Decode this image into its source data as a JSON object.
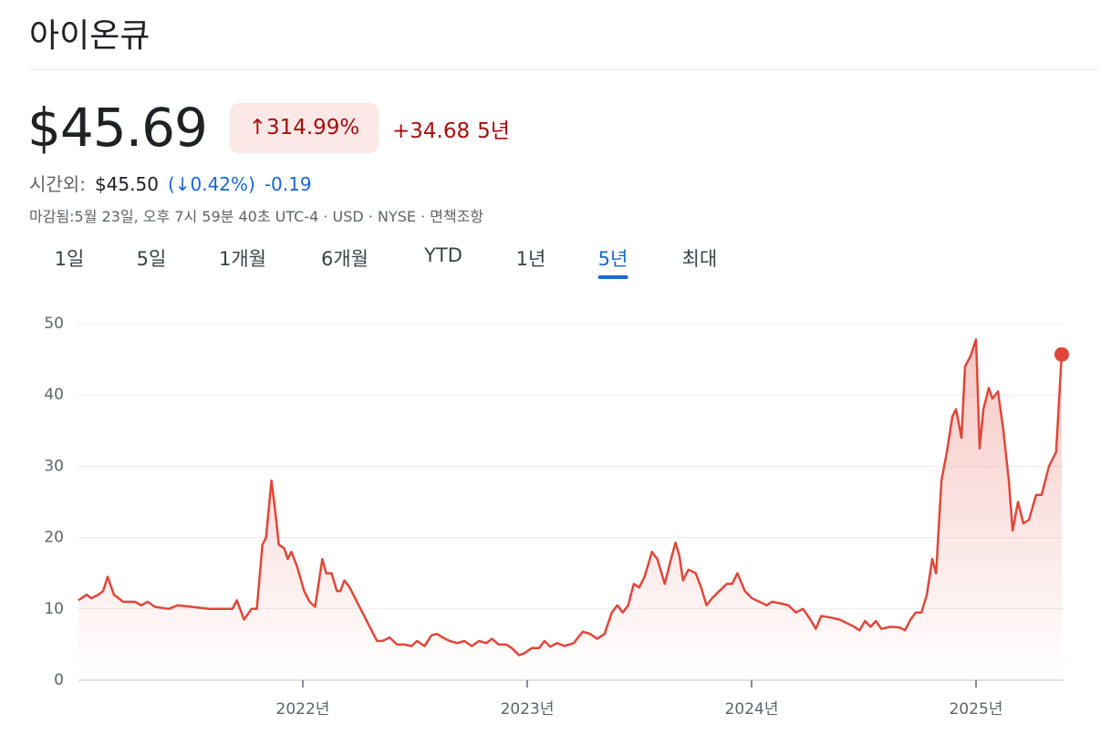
{
  "header": {
    "title": "아이온큐"
  },
  "quote": {
    "price": "$45.69",
    "change_pct": "↑314.99%",
    "change_abs": "+34.68",
    "period": "5년",
    "after_hours_label": "시간외:",
    "after_hours_price": "$45.50",
    "after_hours_change_pct": "(↓0.42%)",
    "after_hours_change": "-0.19",
    "meta": "마감됨:5월 23일, 오후 7시 59분 40초 UTC-4 · USD · NYSE · 면책조항"
  },
  "tabs": {
    "items": [
      "1일",
      "5일",
      "1개월",
      "6개월",
      "YTD",
      "1년",
      "5년",
      "최대"
    ],
    "selected": 6
  },
  "chart_data": {
    "type": "line",
    "color": "#e0463a",
    "x": [
      2021.0,
      2021.037,
      2021.057,
      2021.089,
      2021.11,
      2021.13,
      2021.158,
      2021.199,
      2021.252,
      2021.28,
      2021.308,
      2021.341,
      2021.402,
      2021.442,
      2021.503,
      2021.584,
      2021.686,
      2021.706,
      2021.738,
      2021.771,
      2021.795,
      2021.82,
      2021.836,
      2021.86,
      2021.876,
      2021.893,
      2021.917,
      2021.933,
      2021.949,
      2021.974,
      2022.006,
      2022.03,
      2022.055,
      2022.087,
      2022.104,
      2022.128,
      2022.152,
      2022.168,
      2022.185,
      2022.209,
      2022.241,
      2022.274,
      2022.306,
      2022.331,
      2022.355,
      2022.387,
      2022.42,
      2022.452,
      2022.485,
      2022.509,
      2022.542,
      2022.574,
      2022.598,
      2022.623,
      2022.655,
      2022.688,
      2022.72,
      2022.753,
      2022.785,
      2022.818,
      2022.842,
      2022.874,
      2022.907,
      2022.931,
      2022.964,
      2022.988,
      2023.02,
      2023.053,
      2023.077,
      2023.102,
      2023.134,
      2023.166,
      2023.207,
      2023.248,
      2023.28,
      2023.312,
      2023.345,
      2023.377,
      2023.402,
      2023.426,
      2023.45,
      2023.475,
      2023.499,
      2023.523,
      2023.556,
      2023.58,
      2023.613,
      2023.637,
      2023.661,
      2023.678,
      2023.694,
      2023.718,
      2023.751,
      2023.775,
      2023.799,
      2023.824,
      2023.856,
      2023.889,
      2023.913,
      2023.937,
      2023.97,
      2024.002,
      2024.035,
      2024.067,
      2024.091,
      2024.124,
      2024.164,
      2024.197,
      2024.229,
      2024.262,
      2024.286,
      2024.31,
      2024.351,
      2024.392,
      2024.424,
      2024.457,
      2024.481,
      2024.505,
      2024.53,
      2024.554,
      2024.578,
      2024.619,
      2024.659,
      2024.684,
      2024.708,
      2024.732,
      2024.757,
      2024.781,
      2024.805,
      2024.822,
      2024.846,
      2024.87,
      2024.895,
      2024.911,
      2024.935,
      2024.951,
      2024.976,
      2025.0,
      2025.016,
      2025.033,
      2025.057,
      2025.073,
      2025.098,
      2025.122,
      2025.146,
      2025.163,
      2025.187,
      2025.211,
      2025.236,
      2025.268,
      2025.293,
      2025.325,
      2025.357,
      2025.382
    ],
    "values": [
      11.2,
      12,
      11.5,
      12,
      12.5,
      14.5,
      12,
      11,
      11,
      10.5,
      11,
      10.3,
      10,
      10.5,
      10.3,
      10,
      10,
      11.2,
      8.5,
      10,
      10,
      19,
      20,
      28,
      24,
      19,
      18.5,
      17,
      18,
      16,
      12.5,
      11,
      10.3,
      17,
      15,
      15,
      12.5,
      12.5,
      14,
      13,
      11,
      9,
      7,
      5.5,
      5.5,
      6,
      5,
      5,
      4.8,
      5.5,
      4.8,
      6.3,
      6.5,
      6,
      5.5,
      5.2,
      5.5,
      4.8,
      5.5,
      5.2,
      5.8,
      5,
      5,
      4.5,
      3.5,
      3.8,
      4.5,
      4.5,
      5.5,
      4.7,
      5.2,
      4.8,
      5.2,
      6.8,
      6.5,
      5.8,
      6.5,
      9.5,
      10.5,
      9.5,
      10.5,
      13.5,
      13,
      14.5,
      18,
      17,
      13.5,
      16.5,
      19.3,
      17.5,
      14,
      15.5,
      15,
      13,
      10.5,
      11.5,
      12.5,
      13.5,
      13.5,
      15,
      12.5,
      11.5,
      11,
      10.5,
      11,
      10.8,
      10.5,
      9.5,
      10,
      8.5,
      7.2,
      9,
      8.8,
      8.5,
      8,
      7.5,
      7,
      8.3,
      7.5,
      8.3,
      7.2,
      7.5,
      7.4,
      7,
      8.5,
      9.5,
      9.5,
      12,
      17,
      15,
      28,
      32,
      37,
      38,
      34,
      44,
      45.5,
      47.8,
      32.5,
      38,
      41,
      39.5,
      40.5,
      35,
      28,
      21,
      25,
      22,
      22.5,
      26,
      26,
      30,
      32,
      45.69
    ],
    "xlim": [
      2021.0,
      2025.39
    ],
    "xticks": [
      {
        "value": 2022,
        "label": "2022년"
      },
      {
        "value": 2023,
        "label": "2023년"
      },
      {
        "value": 2024,
        "label": "2024년"
      },
      {
        "value": 2025,
        "label": "2025년"
      }
    ],
    "ylim": [
      0,
      50
    ],
    "yticks": [
      0,
      10,
      20,
      30,
      40,
      50
    ],
    "grid": true
  }
}
